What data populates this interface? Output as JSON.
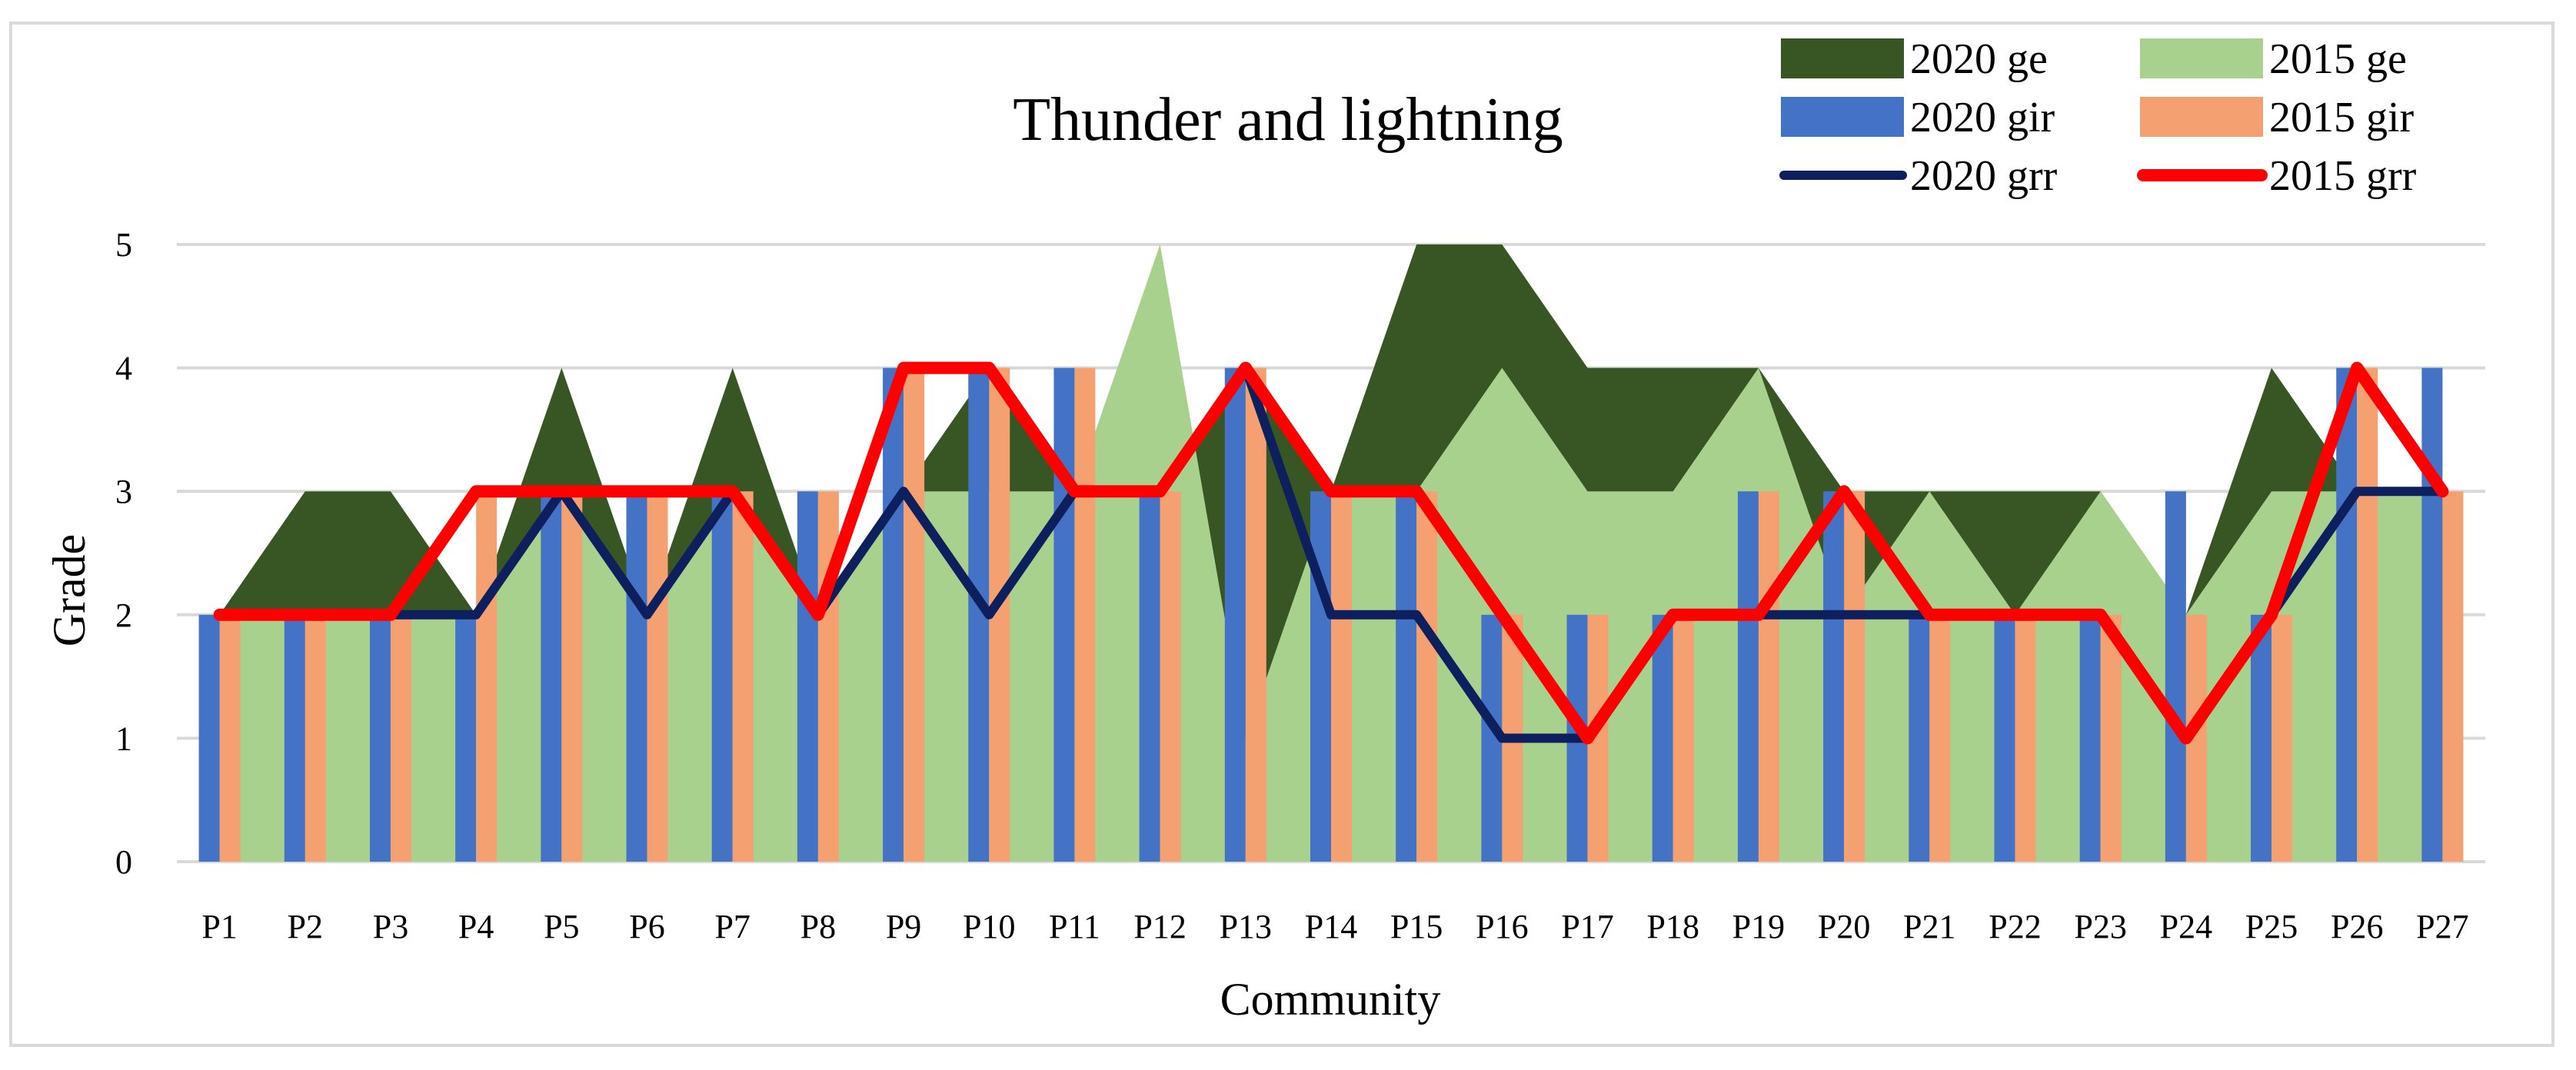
{
  "chart_data": {
    "type": "bar",
    "title": "Thunder and lightning",
    "xlabel": "Community",
    "ylabel": "Grade",
    "ylim": [
      0,
      5
    ],
    "yticks": [
      "0",
      "1",
      "2",
      "3",
      "4",
      "5"
    ],
    "grid": true,
    "legend_position": "top-right",
    "categories": [
      "P1",
      "P2",
      "P3",
      "P4",
      "P5",
      "P6",
      "P7",
      "P8",
      "P9",
      "P10",
      "P11",
      "P12",
      "P13",
      "P14",
      "P15",
      "P16",
      "P17",
      "P18",
      "P19",
      "P20",
      "P21",
      "P22",
      "P23",
      "P24",
      "P25",
      "P26",
      "P27"
    ],
    "series": [
      {
        "name": "2020 ge",
        "kind": "area",
        "color": "#375623",
        "values": [
          2,
          3,
          3,
          2,
          4,
          2,
          4,
          2,
          3,
          4,
          3,
          3,
          4,
          3,
          5,
          5,
          4,
          4,
          4,
          3,
          3,
          3,
          3,
          2,
          4,
          3,
          3
        ]
      },
      {
        "name": "2015 ge",
        "kind": "area",
        "color": "#a9d18e",
        "values": [
          2,
          2,
          2,
          2,
          3,
          2,
          3,
          2,
          3,
          3,
          3,
          5,
          1,
          3,
          3,
          4,
          3,
          3,
          4,
          2,
          3,
          2,
          3,
          2,
          3,
          3,
          3
        ]
      },
      {
        "name": "2020 gir",
        "kind": "bar",
        "color": "#4472c4",
        "values": [
          2,
          2,
          2,
          2,
          3,
          3,
          3,
          3,
          4,
          4,
          4,
          3,
          4,
          3,
          3,
          2,
          2,
          2,
          3,
          3,
          2,
          2,
          2,
          3,
          2,
          4,
          4
        ]
      },
      {
        "name": "2015 gir",
        "kind": "bar",
        "color": "#f4a070",
        "values": [
          2,
          2,
          2,
          3,
          3,
          3,
          3,
          3,
          4,
          4,
          4,
          3,
          4,
          3,
          3,
          2,
          2,
          2,
          3,
          3,
          2,
          2,
          2,
          2,
          2,
          4,
          3
        ]
      },
      {
        "name": "2020 grr",
        "kind": "line",
        "color": "#0d1f5c",
        "values": [
          2,
          2,
          2,
          2,
          3,
          2,
          3,
          2,
          3,
          2,
          3,
          3,
          4,
          2,
          2,
          1,
          1,
          2,
          2,
          2,
          2,
          2,
          2,
          1,
          2,
          3,
          3
        ]
      },
      {
        "name": "2015 grr",
        "kind": "line",
        "color": "#ff0000",
        "values": [
          2,
          2,
          2,
          3,
          3,
          3,
          3,
          2,
          4,
          4,
          3,
          3,
          4,
          3,
          3,
          2,
          1,
          2,
          2,
          3,
          2,
          2,
          2,
          1,
          2,
          4,
          3
        ]
      }
    ]
  }
}
